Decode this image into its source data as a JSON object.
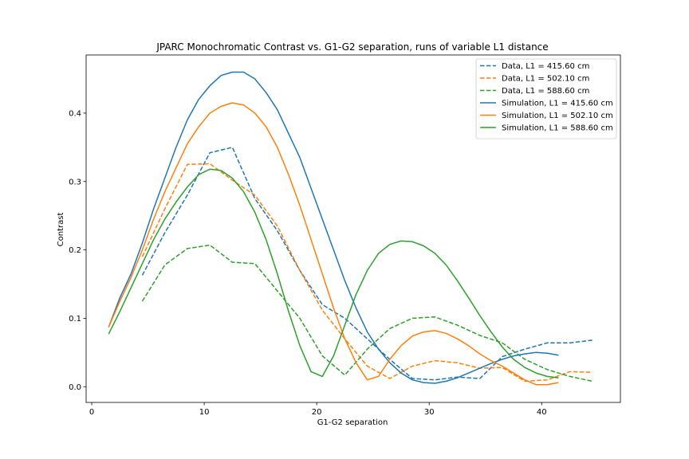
{
  "chart_data": {
    "type": "line",
    "title": "JPARC Monochromatic Contrast vs. G1-G2 separation, runs of variable L1 distance",
    "xlabel": "G1-G2 separation",
    "ylabel": "Contrast",
    "xlim": [
      -0.5,
      47.0
    ],
    "ylim": [
      -0.023,
      0.485
    ],
    "xticks": [
      0,
      10,
      20,
      30,
      40
    ],
    "yticks": [
      0.0,
      0.1,
      0.2,
      0.3,
      0.4
    ],
    "xtick_labels": [
      "0",
      "10",
      "20",
      "30",
      "40"
    ],
    "ytick_labels": [
      "0.0",
      "0.1",
      "0.2",
      "0.3",
      "0.4"
    ],
    "grid": false,
    "legend_position": "top-right",
    "series": [
      {
        "name": "Data, L1 = 415.60 cm",
        "color": "#1f77b4",
        "style": "dashed",
        "x": [
          4.5,
          6.5,
          8.5,
          10.5,
          12.5,
          14.5,
          16.5,
          18.5,
          20.5,
          22.5,
          24.5,
          26.5,
          28.5,
          30.5,
          32.5,
          34.5,
          36.5,
          38.5,
          40.5,
          42.5,
          44.5
        ],
        "y": [
          0.163,
          0.225,
          0.28,
          0.342,
          0.35,
          0.275,
          0.228,
          0.17,
          0.12,
          0.1,
          0.07,
          0.04,
          0.012,
          0.01,
          0.014,
          0.012,
          0.044,
          0.055,
          0.064,
          0.064,
          0.068
        ]
      },
      {
        "name": "Data, L1 = 502.10 cm",
        "color": "#ff7f0e",
        "style": "dashed",
        "x": [
          4.5,
          6.5,
          8.5,
          10.5,
          12.5,
          14.5,
          16.5,
          18.5,
          20.5,
          22.5,
          24.5,
          26.5,
          28.5,
          30.5,
          32.5,
          34.5,
          36.5,
          38.5,
          40.5,
          42.5,
          44.5
        ],
        "y": [
          0.19,
          0.26,
          0.325,
          0.326,
          0.302,
          0.28,
          0.235,
          0.17,
          0.112,
          0.07,
          0.03,
          0.012,
          0.03,
          0.038,
          0.035,
          0.027,
          0.028,
          0.008,
          0.01,
          0.022,
          0.021
        ]
      },
      {
        "name": "Data, L1 = 588.60 cm",
        "color": "#2ca02c",
        "style": "dashed",
        "x": [
          4.5,
          6.5,
          8.5,
          10.5,
          12.5,
          14.5,
          16.5,
          18.5,
          20.5,
          22.5,
          24.5,
          26.5,
          28.5,
          30.5,
          32.5,
          34.5,
          36.5,
          38.5,
          40.5,
          42.5,
          44.5
        ],
        "y": [
          0.125,
          0.178,
          0.202,
          0.207,
          0.182,
          0.18,
          0.14,
          0.1,
          0.045,
          0.017,
          0.055,
          0.085,
          0.1,
          0.102,
          0.09,
          0.075,
          0.064,
          0.04,
          0.025,
          0.015,
          0.008
        ]
      },
      {
        "name": "Simulation, L1 = 415.60 cm",
        "color": "#1f77b4",
        "style": "solid",
        "x": [
          1.5,
          2.5,
          3.5,
          4.5,
          5.5,
          6.5,
          7.5,
          8.5,
          9.5,
          10.5,
          11.5,
          12.5,
          13.5,
          14.5,
          15.5,
          16.5,
          17.5,
          18.5,
          19.5,
          20.5,
          21.5,
          22.5,
          23.5,
          24.5,
          25.5,
          26.5,
          27.5,
          28.5,
          29.5,
          30.5,
          31.5,
          32.5,
          33.5,
          34.5,
          35.5,
          36.5,
          37.5,
          38.5,
          39.5,
          40.5,
          41.5
        ],
        "y": [
          0.087,
          0.13,
          0.165,
          0.21,
          0.26,
          0.305,
          0.35,
          0.39,
          0.42,
          0.44,
          0.455,
          0.46,
          0.46,
          0.45,
          0.43,
          0.405,
          0.37,
          0.335,
          0.29,
          0.245,
          0.2,
          0.155,
          0.115,
          0.08,
          0.055,
          0.035,
          0.02,
          0.01,
          0.006,
          0.005,
          0.008,
          0.013,
          0.02,
          0.027,
          0.034,
          0.04,
          0.045,
          0.048,
          0.05,
          0.049,
          0.046
        ]
      },
      {
        "name": "Simulation, L1 = 502.10 cm",
        "color": "#ff7f0e",
        "style": "solid",
        "x": [
          1.5,
          2.5,
          3.5,
          4.5,
          5.5,
          6.5,
          7.5,
          8.5,
          9.5,
          10.5,
          11.5,
          12.5,
          13.5,
          14.5,
          15.5,
          16.5,
          17.5,
          18.5,
          19.5,
          20.5,
          21.5,
          22.5,
          23.5,
          24.5,
          25.5,
          26.5,
          27.5,
          28.5,
          29.5,
          30.5,
          31.5,
          32.5,
          33.5,
          34.5,
          35.5,
          36.5,
          37.5,
          38.5,
          39.5,
          40.5,
          41.5
        ],
        "y": [
          0.087,
          0.125,
          0.16,
          0.2,
          0.245,
          0.285,
          0.32,
          0.355,
          0.38,
          0.4,
          0.41,
          0.415,
          0.412,
          0.4,
          0.38,
          0.35,
          0.31,
          0.265,
          0.215,
          0.165,
          0.115,
          0.07,
          0.035,
          0.01,
          0.015,
          0.04,
          0.06,
          0.074,
          0.08,
          0.082,
          0.078,
          0.07,
          0.06,
          0.048,
          0.038,
          0.03,
          0.02,
          0.01,
          0.003,
          0.003,
          0.006
        ]
      },
      {
        "name": "Simulation, L1 = 588.60 cm",
        "color": "#2ca02c",
        "style": "solid",
        "x": [
          1.5,
          2.5,
          3.5,
          4.5,
          5.5,
          6.5,
          7.5,
          8.5,
          9.5,
          10.5,
          11.5,
          12.5,
          13.5,
          14.5,
          15.5,
          16.5,
          17.5,
          18.5,
          19.5,
          20.5,
          21.5,
          22.5,
          23.5,
          24.5,
          25.5,
          26.5,
          27.5,
          28.5,
          29.5,
          30.5,
          31.5,
          32.5,
          33.5,
          34.5,
          35.5,
          36.5,
          37.5,
          38.5,
          39.5,
          40.5,
          41.5
        ],
        "y": [
          0.077,
          0.11,
          0.145,
          0.18,
          0.215,
          0.245,
          0.27,
          0.292,
          0.31,
          0.318,
          0.316,
          0.305,
          0.285,
          0.255,
          0.215,
          0.165,
          0.11,
          0.06,
          0.022,
          0.015,
          0.045,
          0.09,
          0.135,
          0.17,
          0.195,
          0.208,
          0.213,
          0.212,
          0.206,
          0.195,
          0.178,
          0.155,
          0.13,
          0.104,
          0.08,
          0.058,
          0.04,
          0.028,
          0.02,
          0.015,
          0.013
        ]
      }
    ]
  }
}
